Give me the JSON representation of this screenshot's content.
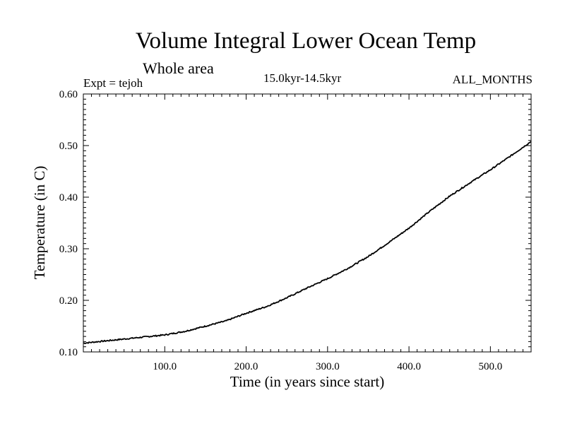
{
  "header": {
    "title": "Volume Integral Lower Ocean Temp",
    "subtitle": "Whole area",
    "expt": "Expt = tejoh",
    "period": "15.0kyr-14.5kyr",
    "months": "ALL_MONTHS"
  },
  "chart_data": {
    "type": "line",
    "title": "Volume Integral Lower Ocean Temp",
    "xlabel": "Time (in years since start)",
    "ylabel": "Temperature (in C)",
    "xlim": [
      0,
      550
    ],
    "ylim": [
      0.1,
      0.6
    ],
    "x_ticks": [
      {
        "value": 100,
        "label": "100.0"
      },
      {
        "value": 200,
        "label": "200.0"
      },
      {
        "value": 300,
        "label": "300.0"
      },
      {
        "value": 400,
        "label": "400.0"
      },
      {
        "value": 500,
        "label": "500.0"
      }
    ],
    "y_ticks": [
      {
        "value": 0.1,
        "label": "0.10"
      },
      {
        "value": 0.2,
        "label": "0.20"
      },
      {
        "value": 0.3,
        "label": "0.30"
      },
      {
        "value": 0.4,
        "label": "0.40"
      },
      {
        "value": 0.5,
        "label": "0.50"
      },
      {
        "value": 0.6,
        "label": "0.60"
      }
    ],
    "series": [
      {
        "name": "Lower Ocean Temp",
        "color": "#000000",
        "x": [
          0,
          25,
          50,
          75,
          100,
          125,
          150,
          175,
          200,
          225,
          250,
          275,
          300,
          325,
          350,
          375,
          400,
          425,
          450,
          475,
          500,
          525,
          550
        ],
        "values": [
          0.117,
          0.121,
          0.125,
          0.129,
          0.133,
          0.14,
          0.15,
          0.16,
          0.175,
          0.188,
          0.205,
          0.224,
          0.242,
          0.262,
          0.285,
          0.312,
          0.34,
          0.372,
          0.402,
          0.428,
          0.453,
          0.48,
          0.508
        ]
      }
    ]
  }
}
